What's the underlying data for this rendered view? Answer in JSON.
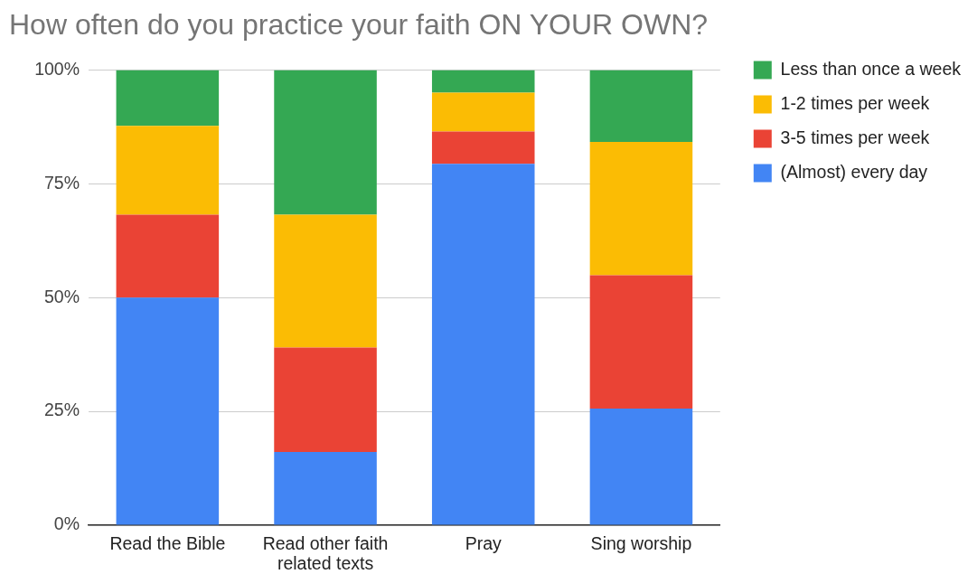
{
  "chart_data": {
    "type": "bar",
    "title": "How often do you practice your faith ON YOUR OWN?",
    "categories": [
      "Read the Bible",
      "Read other faith related texts",
      "Pray",
      "Sing worship"
    ],
    "series": [
      {
        "name": "(Almost) every day",
        "color": "#4285f4",
        "values": [
          50,
          16.1,
          79.4,
          25.6
        ]
      },
      {
        "name": "3-5 times per week",
        "color": "#ea4335",
        "values": [
          18.2,
          22.9,
          7.1,
          29.3
        ]
      },
      {
        "name": "1-2 times per week",
        "color": "#fbbc04",
        "values": [
          19.5,
          29.2,
          8.5,
          29.3
        ]
      },
      {
        "name": "Less than once a week",
        "color": "#34a853",
        "values": [
          12.3,
          31.8,
          5,
          15.8
        ]
      }
    ],
    "stacked": true,
    "ylim": [
      0,
      100
    ],
    "yticks": [
      {
        "value": 0,
        "label": "0%"
      },
      {
        "value": 25,
        "label": "25%"
      },
      {
        "value": 50,
        "label": "50%"
      },
      {
        "value": 75,
        "label": "75%"
      },
      {
        "value": 100,
        "label": "100%"
      }
    ],
    "grid": "y",
    "legend": "right"
  }
}
